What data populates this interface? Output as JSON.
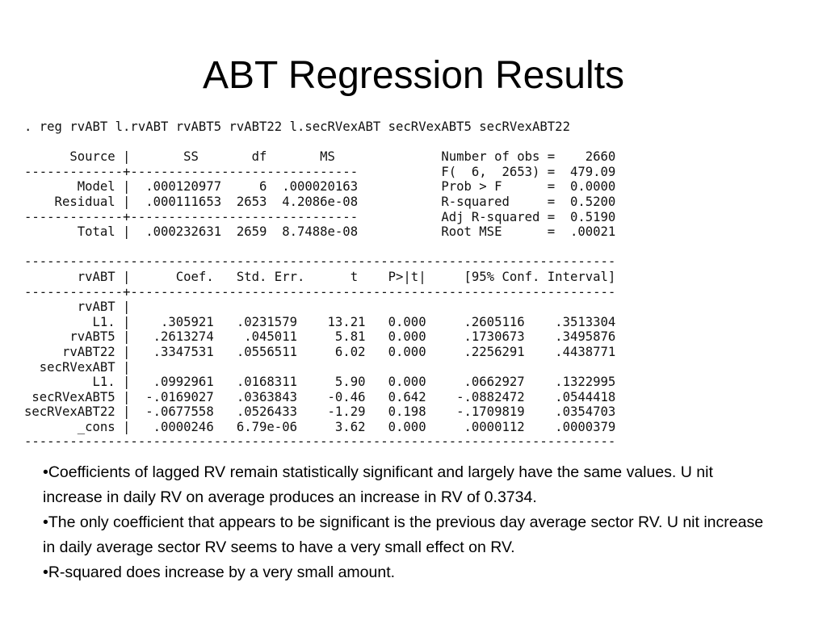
{
  "slide": {
    "title": "ABT Regression Results"
  },
  "regression_output": {
    "command": ". reg rvABT l.rvABT rvABT5 rvABT22 l.secRVexABT secRVexABT5 secRVexABT22",
    "anova_header": "      Source |       SS       df       MS              Number of obs =    2660",
    "anova_rule": "-------------+------------------------------           F(  6,  2653) =  479.09",
    "anova_model": "       Model |  .000120977     6  .000020163           Prob > F      =  0.0000",
    "anova_residual": "    Residual |  .000111653  2653  4.2086e-08           R-squared     =  0.5200",
    "anova_rule2": "-------------+------------------------------           Adj R-squared =  0.5190",
    "anova_total": "       Total |  .000232631  2659  8.7488e-08           Root MSE      =  .00021",
    "coef_rule_top": "------------------------------------------------------------------------------",
    "coef_header": "       rvABT |      Coef.   Std. Err.      t    P>|t|     [95% Conf. Interval]",
    "coef_rule_mid": "-------------+----------------------------------------------------------------",
    "rows": [
      "       rvABT |",
      "         L1. |    .305921   .0231579    13.21   0.000     .2605116    .3513304",
      "      rvABT5 |   .2613274    .045011     5.81   0.000     .1730673    .3495876",
      "     rvABT22 |   .3347531   .0556511     6.02   0.000     .2256291    .4438771",
      "  secRVexABT |",
      "         L1. |   .0992961   .0168311     5.90   0.000     .0662927    .1322995",
      " secRVexABT5 |  -.0169027   .0363843    -0.46   0.642    -.0882472    .0544418",
      "secRVexABT22 |  -.0677558   .0526433    -1.29   0.198    -.1709819    .0354703",
      "       _cons |   .0000246   6.79e-06     3.62   0.000     .0000112    .0000379"
    ],
    "coef_rule_bottom": "------------------------------------------------------------------------------"
  },
  "bullets": [
    "•Coefficients of lagged RV remain statistically significant and largely have the same values. U nit increase in daily RV on average produces an increase in RV of 0.3734.",
    "•The only coefficient that appears to be significant is the previous day average sector RV. U nit increase in daily average sector RV seems to have a very small effect on RV.",
    "•R-squared does increase by a very small amount."
  ]
}
